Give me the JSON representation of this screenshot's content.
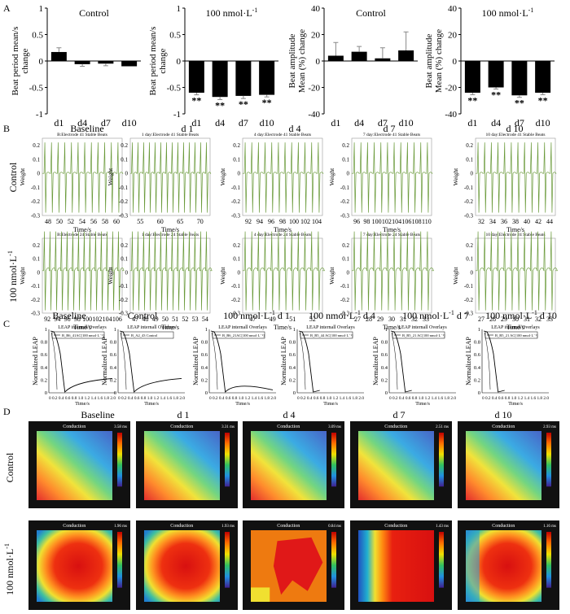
{
  "panel_letters": [
    "A",
    "B",
    "C",
    "D"
  ],
  "chart_data": [
    {
      "id": "A1",
      "type": "bar",
      "title": "Control",
      "ylabel": "Beat period mean/s change",
      "categories": [
        "d1",
        "d4",
        "d7",
        "d10"
      ],
      "values": [
        0.17,
        -0.06,
        -0.05,
        -0.1
      ],
      "errors": [
        0.08,
        0.04,
        0.04,
        0.0
      ],
      "significance": [
        "",
        "",
        "",
        ""
      ],
      "ylim": [
        -1,
        1
      ],
      "yticks": [
        1,
        0.5,
        0,
        -0.5,
        -1
      ]
    },
    {
      "id": "A2",
      "type": "bar",
      "title": "100 nmol·L",
      "title_sup": "-1",
      "ylabel": "Beat period mean/s change",
      "categories": [
        "d1",
        "d4",
        "d7",
        "d10"
      ],
      "values": [
        -0.6,
        -0.68,
        -0.66,
        -0.64
      ],
      "errors": [
        0.04,
        0.05,
        0.05,
        0.04
      ],
      "significance": [
        "**",
        "**",
        "**",
        "**"
      ],
      "ylim": [
        -1,
        1
      ],
      "yticks": [
        1,
        0.5,
        0,
        -0.5,
        -1
      ]
    },
    {
      "id": "A3",
      "type": "bar",
      "title": "Control",
      "ylabel": "Beat amplitude Mean (%) change",
      "categories": [
        "d1",
        "d4",
        "d7",
        "d10"
      ],
      "values": [
        4,
        7,
        2,
        8
      ],
      "errors": [
        10,
        4,
        8,
        14
      ],
      "significance": [
        "",
        "",
        "",
        ""
      ],
      "ylim": [
        -40,
        40
      ],
      "yticks": [
        40,
        20,
        0,
        -20,
        -40
      ]
    },
    {
      "id": "A4",
      "type": "bar",
      "title": "100 nmol·L",
      "title_sup": "-1",
      "ylabel": "Beat amplitude Mean (%) change",
      "categories": [
        "d1",
        "d4",
        "d7",
        "d10"
      ],
      "values": [
        -24,
        -20,
        -26,
        -24
      ],
      "errors": [
        1.5,
        1.2,
        1.5,
        1.5
      ],
      "significance": [
        "**",
        "**",
        "**",
        "**"
      ],
      "ylim": [
        -40,
        40
      ],
      "yticks": [
        40,
        20,
        0,
        -20,
        -40
      ]
    },
    {
      "id": "B",
      "type": "line",
      "column_titles": [
        "Baseline",
        "d 1",
        "d 4",
        "d 7",
        "d 10"
      ],
      "row_labels": [
        "Control",
        "100 nmol·L"
      ],
      "row_label_sup": "-1",
      "ylabel": "Weight",
      "xlabel": "Time/s",
      "yticks": [
        "0.2",
        "0.1",
        "0",
        "-0.1",
        "-0.2",
        "-0.3"
      ],
      "ylim": [
        -0.3,
        0.25
      ],
      "rows": [
        [
          {
            "subtitle": "B:Electrode 41 Stable Beats",
            "xticks": [
              "48",
              "50",
              "52",
              "54",
              "56",
              "58",
              "60"
            ],
            "beats": 12
          },
          {
            "subtitle": "1 day:Electrode 41 Stable Beats",
            "xticks": [
              "55",
              "60",
              "65",
              "70"
            ],
            "beats": 14
          },
          {
            "subtitle": "4 day:Electrode 41 Stable Beats",
            "xticks": [
              "92",
              "94",
              "96",
              "98",
              "100",
              "102",
              "104"
            ],
            "beats": 12
          },
          {
            "subtitle": "7 day:Electrode 41 Stable Beats",
            "xticks": [
              "96",
              "98",
              "100",
              "102",
              "104",
              "106",
              "108",
              "110"
            ],
            "beats": 12
          },
          {
            "subtitle": "10 day:Electrode 41 Stable Beats",
            "xticks": [
              "32",
              "34",
              "36",
              "38",
              "40",
              "42",
              "44"
            ],
            "beats": 12
          }
        ],
        [
          {
            "subtitle": "B:Electrode 24 Stable Beats",
            "xticks": [
              "92",
              "94",
              "96",
              "98",
              "100",
              "102",
              "104",
              "106"
            ],
            "beats": 14
          },
          {
            "subtitle": "1 day:Electrode 24 Stable Beats",
            "xticks": [
              "47",
              "48",
              "49",
              "50",
              "51",
              "52",
              "53",
              "54"
            ],
            "beats": 14
          },
          {
            "subtitle": "4 day:Electrode 24 Stable Beats",
            "xticks": [
              "47",
              "49",
              "51",
              "52"
            ],
            "beats": 12
          },
          {
            "subtitle": "7 day:Electrode 24 Stable Beats",
            "xticks": [
              "27",
              "28",
              "29",
              "30",
              "31",
              "32",
              "33"
            ],
            "beats": 12
          },
          {
            "subtitle": "10 day:Electrode 24 Stable Beats",
            "xticks": [
              "27",
              "28",
              "29",
              "30",
              "31",
              "32",
              "33"
            ],
            "beats": 12
          }
        ]
      ]
    },
    {
      "id": "C",
      "type": "line",
      "titles": [
        "Baseline",
        "Control",
        "100 nmol·L",
        "100 nmol·L",
        "100 nmol·L",
        "100 nmol·L"
      ],
      "title_sup": "-1",
      "title_suffix": [
        "",
        "",
        "d 1",
        "d 4",
        "d 7",
        "d 10"
      ],
      "subtitle": "LEAP internall Overlays",
      "legends": [
        "B_B6_41AC[100 nmol·L⁻¹]",
        "B_A2_43 Control",
        "B_B6_21AC[100 nmol·L⁻¹]",
        "B_B5_44 AC[100 nmol·L⁻¹]",
        "B_B5_21 AC[100 nmol·L⁻¹]",
        "B_B5_21 AC[100 nmol·L⁻¹]"
      ],
      "ylabel": "Normalized LEAP",
      "xlabel": "Time/s",
      "yticks": [
        "1",
        "0.8",
        "0.6",
        "0.4",
        "0.2",
        "0"
      ],
      "xticks": "0 0.2 0.4 0.6 0.8 1.0 1.2 1.4 1.6 1.8 2.0",
      "recovery": [
        0.25,
        0.25,
        0.05,
        0.0,
        0.0,
        0.0
      ]
    },
    {
      "id": "D",
      "type": "heatmap",
      "column_titles": [
        "Baseline",
        "d 1",
        "d 4",
        "d 7",
        "d 10"
      ],
      "row_labels": [
        "Control",
        "100 nmol·L"
      ],
      "row_label_sup": "-1",
      "map_title": "Conduction",
      "colorbar_max": [
        [
          "3.58 ms",
          "3.31 ms",
          "3.09 ms",
          "2.51 ms",
          "2.93 ms"
        ],
        [
          "1.96 ms",
          "1.93 ms",
          "0.84 ms",
          "1.43 ms",
          "1.16 ms"
        ]
      ],
      "patterns": [
        [
          "grad",
          "grad",
          "grad",
          "grad",
          "grad"
        ],
        [
          "blob",
          "blob",
          "jag",
          "right",
          "wide"
        ]
      ]
    }
  ]
}
